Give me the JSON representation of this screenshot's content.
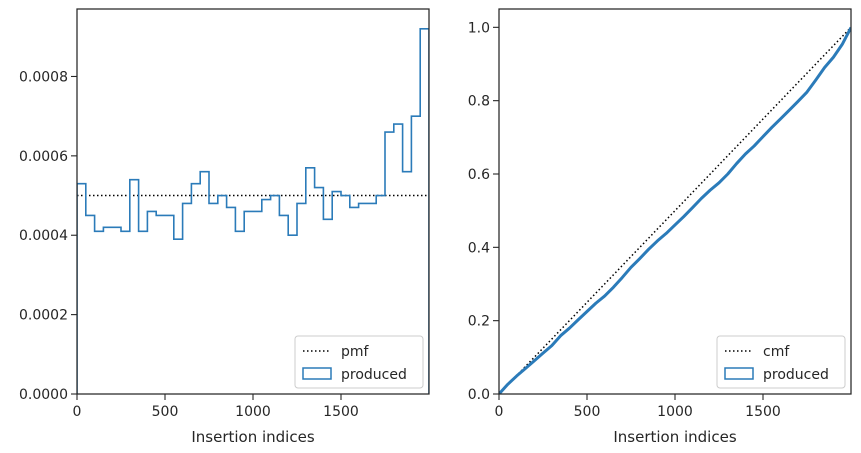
{
  "chart_data": [
    {
      "type": "step",
      "xlabel": "Insertion indices",
      "ylabel": "",
      "xlim": [
        0,
        2000
      ],
      "ylim": [
        0,
        0.00097
      ],
      "xticks": [
        0,
        500,
        1000,
        1500
      ],
      "xtick_labels": [
        "0",
        "500",
        "1000",
        "1500"
      ],
      "yticks": [
        0,
        0.0002,
        0.0004,
        0.0006,
        0.0008
      ],
      "ytick_labels": [
        "0.0000",
        "0.0002",
        "0.0004",
        "0.0006",
        "0.0008"
      ],
      "grid": false,
      "legend_position": "lower-right",
      "series": [
        {
          "name": "pmf",
          "style": "dotted",
          "color": "#000000",
          "x": [
            0,
            2000
          ],
          "y": [
            0.0005,
            0.0005
          ]
        },
        {
          "name": "produced",
          "style": "step-histogram",
          "color": "#2b7bb9",
          "bin_edges": [
            0,
            50,
            100,
            150,
            200,
            250,
            300,
            350,
            400,
            450,
            500,
            550,
            600,
            650,
            700,
            750,
            800,
            850,
            900,
            950,
            1000,
            1050,
            1100,
            1150,
            1200,
            1250,
            1300,
            1350,
            1400,
            1450,
            1500,
            1550,
            1600,
            1650,
            1700,
            1750,
            1800,
            1850,
            1900,
            1950,
            2000
          ],
          "values": [
            0.00053,
            0.00045,
            0.00041,
            0.00042,
            0.00042,
            0.00041,
            0.00054,
            0.00041,
            0.00046,
            0.00045,
            0.00045,
            0.00039,
            0.00048,
            0.00053,
            0.00056,
            0.00048,
            0.0005,
            0.00047,
            0.00041,
            0.00046,
            0.00046,
            0.00049,
            0.0005,
            0.00045,
            0.0004,
            0.00048,
            0.00057,
            0.00052,
            0.00044,
            0.00051,
            0.0005,
            0.00047,
            0.00048,
            0.00048,
            0.0005,
            0.00066,
            0.00068,
            0.00056,
            0.0007,
            0.00092
          ]
        }
      ]
    },
    {
      "type": "line",
      "xlabel": "Insertion indices",
      "ylabel": "",
      "xlim": [
        0,
        2000
      ],
      "ylim": [
        0,
        1.05
      ],
      "xticks": [
        0,
        500,
        1000,
        1500
      ],
      "xtick_labels": [
        "0",
        "500",
        "1000",
        "1500"
      ],
      "yticks": [
        0,
        0.2,
        0.4,
        0.6,
        0.8,
        1.0
      ],
      "ytick_labels": [
        "0.0",
        "0.2",
        "0.4",
        "0.6",
        "0.8",
        "1.0"
      ],
      "grid": false,
      "legend_position": "lower-right",
      "series": [
        {
          "name": "cmf",
          "style": "dotted",
          "color": "#000000",
          "x": [
            0,
            2000
          ],
          "y": [
            0,
            1.0
          ]
        },
        {
          "name": "produced",
          "style": "thick-line",
          "color": "#2b7bb9",
          "x": [
            0,
            50,
            100,
            150,
            200,
            250,
            300,
            350,
            400,
            450,
            500,
            550,
            600,
            650,
            700,
            750,
            800,
            850,
            900,
            950,
            1000,
            1050,
            1100,
            1150,
            1200,
            1250,
            1300,
            1350,
            1400,
            1450,
            1500,
            1550,
            1600,
            1650,
            1700,
            1750,
            1800,
            1850,
            1900,
            1950,
            2000
          ],
          "y": [
            0,
            0.0265,
            0.049,
            0.0695,
            0.0905,
            0.1115,
            0.132,
            0.159,
            0.1795,
            0.2025,
            0.225,
            0.2475,
            0.267,
            0.291,
            0.3175,
            0.3455,
            0.3695,
            0.3945,
            0.4175,
            0.438,
            0.461,
            0.484,
            0.5085,
            0.5335,
            0.556,
            0.576,
            0.6,
            0.6285,
            0.6545,
            0.6765,
            0.702,
            0.727,
            0.7505,
            0.7745,
            0.7985,
            0.8235,
            0.8565,
            0.8905,
            0.9185,
            0.9535,
            0.9995
          ]
        }
      ]
    }
  ]
}
